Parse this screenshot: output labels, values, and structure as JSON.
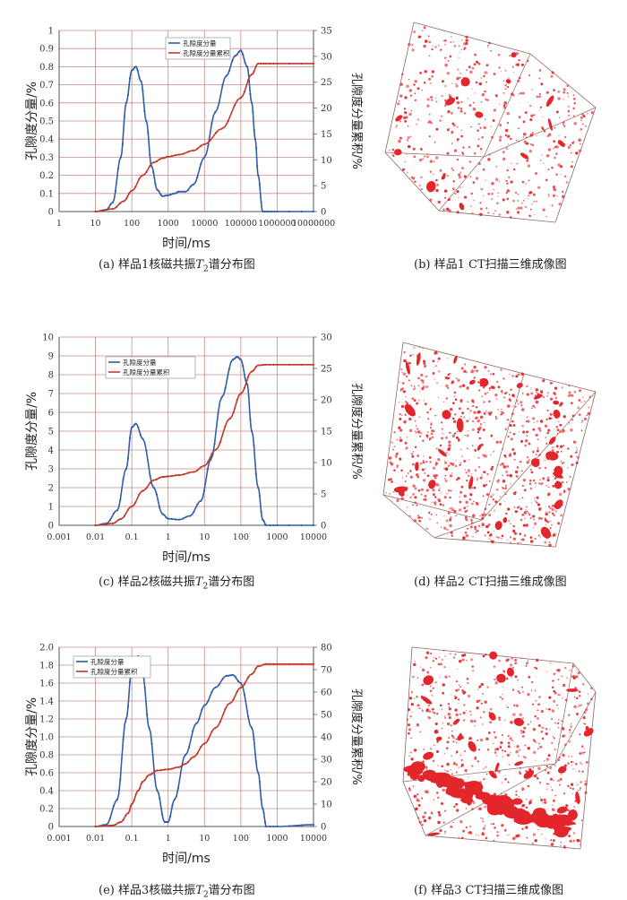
{
  "chart_data": [
    {
      "type": "line",
      "id": "a",
      "caption": {
        "label": "(a)",
        "text1": "样品1核磁共振",
        "sym": "T",
        "sub": "2",
        "text2": "谱分布图"
      },
      "xlabel": "时间/ms",
      "ylabel": "孔隙度分量/%",
      "y2label": "孔隙度分量累积/%",
      "xscale": "log",
      "xlim": [
        1,
        10000000
      ],
      "xticks": [
        "1",
        "10",
        "100",
        "1000",
        "10000",
        "100000",
        "1000000",
        "10000000"
      ],
      "ylim": [
        0,
        1
      ],
      "yticks": [
        "0",
        "0.1",
        "0.2",
        "0.3",
        "0.4",
        "0.5",
        "0.6",
        "0.7",
        "0.8",
        "0.9",
        "1"
      ],
      "y2lim": [
        0,
        35
      ],
      "y2ticks": [
        "0",
        "5",
        "10",
        "15",
        "20",
        "25",
        "30",
        "35"
      ],
      "legend": {
        "position": "top-center",
        "entries": [
          "孔隙度分量",
          "孔隙度分量累积"
        ]
      },
      "series": [
        {
          "name": "孔隙度分量",
          "axis": "left",
          "color": "#2f5fa8",
          "x": [
            10,
            20,
            30,
            50,
            70,
            100,
            130,
            180,
            250,
            350,
            500,
            700,
            1000,
            1500,
            2000,
            3000,
            5000,
            10000,
            20000,
            40000,
            70000,
            100000,
            150000,
            200000,
            250000,
            300000,
            400000,
            600000,
            1000000,
            10000000
          ],
          "y": [
            0,
            0.01,
            0.05,
            0.3,
            0.6,
            0.78,
            0.8,
            0.72,
            0.5,
            0.25,
            0.12,
            0.085,
            0.09,
            0.1,
            0.11,
            0.11,
            0.15,
            0.3,
            0.55,
            0.75,
            0.86,
            0.89,
            0.8,
            0.6,
            0.4,
            0.2,
            0,
            0,
            0,
            0
          ]
        },
        {
          "name": "孔隙度分量累积",
          "axis": "right",
          "color": "#c0392b",
          "x": [
            10,
            30,
            60,
            100,
            200,
            400,
            700,
            1000,
            2000,
            5000,
            10000,
            30000,
            100000,
            200000,
            300000,
            500000,
            1000000,
            10000000
          ],
          "y": [
            0,
            0.5,
            2,
            4,
            7,
            9.5,
            10.3,
            10.6,
            11,
            11.8,
            13,
            16,
            22,
            26.5,
            28.6,
            28.6,
            28.6,
            28.6
          ]
        }
      ]
    },
    {
      "type": "line",
      "id": "c",
      "caption": {
        "label": "(c)",
        "text1": "样品2核磁共振",
        "sym": "T",
        "sub": "2",
        "text2": "谱分布图"
      },
      "xlabel": "时间/ms",
      "ylabel": "孔隙度分量/%",
      "y2label": "孔隙度分量累积/%",
      "xscale": "log",
      "xlim": [
        0.001,
        10000
      ],
      "xticks": [
        "0.001",
        "0.01",
        "0.1",
        "1",
        "10",
        "100",
        "1000",
        "10000"
      ],
      "ylim": [
        0,
        10
      ],
      "yticks": [
        "0",
        "1",
        "2",
        "3",
        "4",
        "5",
        "6",
        "7",
        "8",
        "9",
        "10"
      ],
      "y2lim": [
        0,
        30
      ],
      "y2ticks": [
        "0",
        "5",
        "10",
        "15",
        "20",
        "25",
        "30"
      ],
      "legend": {
        "position": "top-left",
        "entries": [
          "孔隙度分量",
          "孔隙度分量累积"
        ]
      },
      "series": [
        {
          "name": "孔隙度分量",
          "axis": "left",
          "color": "#2f5fa8",
          "x": [
            0.01,
            0.02,
            0.04,
            0.07,
            0.1,
            0.13,
            0.2,
            0.4,
            0.7,
            1,
            2,
            4,
            8,
            15,
            30,
            60,
            80,
            100,
            150,
            200,
            300,
            400,
            500,
            1000,
            10000
          ],
          "y": [
            0,
            0.1,
            0.8,
            3,
            5.2,
            5.4,
            4.6,
            2,
            0.6,
            0.35,
            0.3,
            0.5,
            1.3,
            3.5,
            6.8,
            8.8,
            8.95,
            8.8,
            7.5,
            5,
            2,
            0.3,
            0,
            0,
            0
          ]
        },
        {
          "name": "孔隙度分量累积",
          "axis": "right",
          "color": "#c0392b",
          "x": [
            0.01,
            0.03,
            0.05,
            0.1,
            0.2,
            0.4,
            0.7,
            1,
            2,
            5,
            10,
            20,
            50,
            100,
            200,
            300,
            500,
            1000,
            10000
          ],
          "y": [
            0,
            0.3,
            1,
            3,
            5.5,
            7.2,
            7.7,
            7.8,
            8,
            8.5,
            9.5,
            12,
            17,
            21,
            24.5,
            25.5,
            25.6,
            25.6,
            25.6
          ]
        }
      ]
    },
    {
      "type": "line",
      "id": "e",
      "caption": {
        "label": "(e)",
        "text1": "样品3核磁共振",
        "sym": "T",
        "sub": "2",
        "text2": "谱分布图"
      },
      "xlabel": "时间/ms",
      "ylabel": "孔隙度分量/%",
      "y2label": "孔隙度分量累积/%",
      "xscale": "log",
      "xlim": [
        0.001,
        10000
      ],
      "xticks": [
        "0.001",
        "0.01",
        "0.1",
        "1",
        "10",
        "100",
        "1000",
        "10000"
      ],
      "ylim": [
        0,
        2
      ],
      "yticks": [
        "0",
        "0.2",
        "0.4",
        "0.6",
        "0.8",
        "1.0",
        "1.2",
        "1.4",
        "1.6",
        "1.8",
        "2.0"
      ],
      "y2lim": [
        0,
        80
      ],
      "y2ticks": [
        "0",
        "10",
        "20",
        "30",
        "40",
        "50",
        "60",
        "70",
        "80"
      ],
      "legend": {
        "position": "top-left",
        "entries": [
          "孔隙度分量",
          "孔隙度分量累积"
        ]
      },
      "series": [
        {
          "name": "孔隙度分量",
          "axis": "left",
          "color": "#2f5fa8",
          "x": [
            0.01,
            0.02,
            0.04,
            0.07,
            0.1,
            0.15,
            0.2,
            0.3,
            0.5,
            0.8,
            1,
            1.5,
            3,
            6,
            10,
            20,
            40,
            60,
            100,
            200,
            300,
            400,
            500,
            1000,
            10000
          ],
          "y": [
            0,
            0.02,
            0.3,
            1.2,
            1.75,
            1.9,
            1.7,
            1.1,
            0.4,
            0.05,
            0.05,
            0.3,
            0.8,
            1.15,
            1.35,
            1.55,
            1.68,
            1.69,
            1.6,
            1.1,
            0.6,
            0.2,
            0,
            0,
            0.02
          ]
        },
        {
          "name": "孔隙度分量累积",
          "axis": "right",
          "color": "#c0392b",
          "x": [
            0.01,
            0.03,
            0.05,
            0.08,
            0.1,
            0.15,
            0.2,
            0.3,
            0.5,
            1,
            2,
            3,
            5,
            10,
            20,
            50,
            100,
            200,
            300,
            500,
            1000,
            10000
          ],
          "y": [
            0,
            0.5,
            2,
            6,
            10,
            16,
            20,
            23,
            25,
            25.5,
            26.5,
            28,
            31,
            37,
            44,
            55,
            62,
            68,
            71.5,
            72.5,
            72.5,
            72.5
          ]
        }
      ]
    }
  ],
  "ct_captions": [
    {
      "label": "(b)",
      "text": "样品1 CT扫描三维成像图"
    },
    {
      "label": "(d)",
      "text": "样品2 CT扫描三维成像图"
    },
    {
      "label": "(f)",
      "text": "样品3 CT扫描三维成像图"
    }
  ],
  "colors": {
    "pore": "#e3262b",
    "box": "#8a6a63",
    "grid": "#c98a8a",
    "blue": "#2f5fa8",
    "red": "#c0392b"
  }
}
